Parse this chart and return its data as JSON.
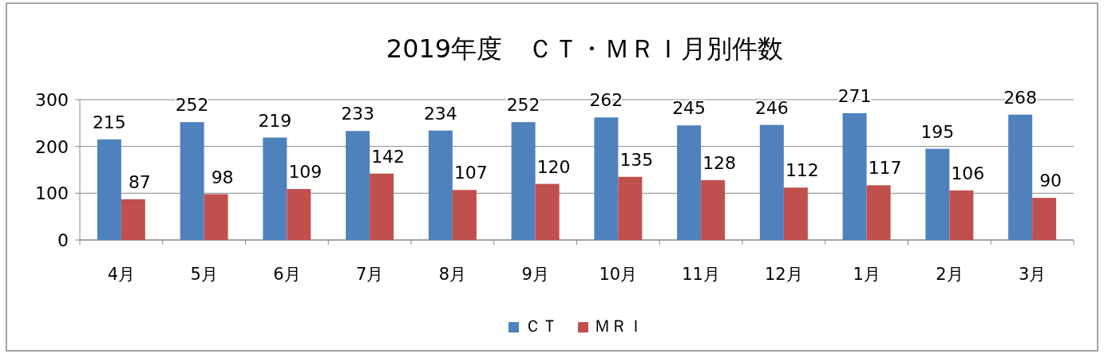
{
  "chart_data": {
    "type": "bar",
    "title": "2019年度　ＣＴ・ＭＲＩ月別件数",
    "categories": [
      "4月",
      "5月",
      "6月",
      "7月",
      "8月",
      "9月",
      "10月",
      "11月",
      "12月",
      "1月",
      "2月",
      "3月"
    ],
    "series": [
      {
        "name": "ＣＴ",
        "color": "#4f81bd",
        "values": [
          215,
          252,
          219,
          233,
          234,
          252,
          262,
          245,
          246,
          271,
          195,
          268
        ]
      },
      {
        "name": "ＭＲＩ",
        "color": "#c0504d",
        "values": [
          87,
          98,
          109,
          142,
          107,
          120,
          135,
          128,
          112,
          117,
          106,
          90
        ]
      }
    ],
    "ylim": [
      0,
      300
    ],
    "yticks": [
      0,
      100,
      200,
      300
    ],
    "grid": "y",
    "legend": "bottom",
    "data_labels": true
  }
}
